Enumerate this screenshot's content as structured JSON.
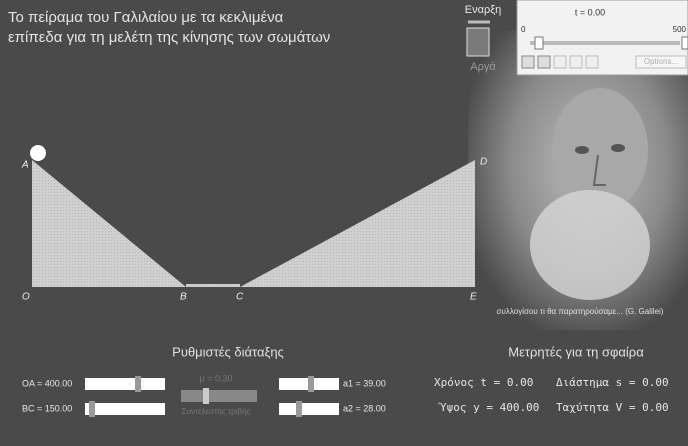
{
  "title": [
    "Το πείραμα του Γαλιλαίου με τα κεκλιμένα",
    "επίπεδα για τη μελέτη της κίνησης των σωμάτων"
  ],
  "controls": {
    "start": "Εναρξη",
    "slow": "Αργά",
    "time": "t = 0.00",
    "slider_min": "0",
    "slider_max": "500",
    "options": "Options..."
  },
  "points": [
    "A",
    "O",
    "B",
    "C",
    "E",
    "D"
  ],
  "caption": "συλλογίσου τι θα παρατηρούσαμε... (G. Galilei)",
  "settings": {
    "heading": "Ρυθμιστές διάταξης",
    "oa": "OA = 400.00",
    "bc": "BC = 150.00",
    "mu": "μ = 0.30",
    "friction": "Συντελεστής τριβής",
    "a1": "a1 = 39.00",
    "a2": "a2 = 28.00"
  },
  "meters": {
    "heading": "Μετρητές για τη σφαίρα",
    "time": "Χρόνος t = 0.00",
    "distance": "Διάστημα s = 0.00",
    "height": "Ύψος y = 400.00",
    "speed": "Ταχύτητα V = 0.00"
  }
}
